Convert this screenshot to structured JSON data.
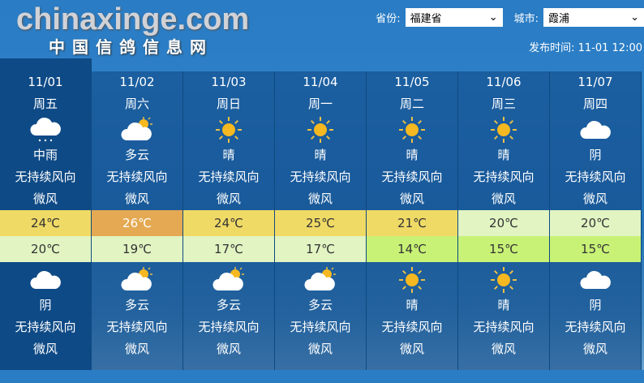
{
  "header": {
    "province_label": "省份:",
    "province_value": "福建省",
    "city_label": "城市:",
    "city_value": "霞浦",
    "publish_label": "发布时间:",
    "publish_time": "11-01 12:00"
  },
  "colors": {
    "high_warm": "#f0da66",
    "high_hot": "#e4a952",
    "mild": "#e1f4c2",
    "cool": "#c8f276"
  },
  "days": [
    {
      "date": "11/01",
      "weekday": "周五",
      "day_icon": "rain-cloud",
      "day_cond": "中雨",
      "day_wind_dir": "无持续风向",
      "day_wind": "微风",
      "high": "24℃",
      "high_color": "#f0da66",
      "high_text": "#333",
      "low": "20℃",
      "low_color": "#e1f4c2",
      "night_icon": "cloud",
      "night_cond": "阴",
      "night_wind_dir": "无持续风向",
      "night_wind": "微风"
    },
    {
      "date": "11/02",
      "weekday": "周六",
      "day_icon": "partly-cloudy",
      "day_cond": "多云",
      "day_wind_dir": "无持续风向",
      "day_wind": "微风",
      "high": "26℃",
      "high_color": "#e4a952",
      "high_text": "#fff",
      "low": "19℃",
      "low_color": "#e1f4c2",
      "night_icon": "partly-cloudy",
      "night_cond": "多云",
      "night_wind_dir": "无持续风向",
      "night_wind": "微风"
    },
    {
      "date": "11/03",
      "weekday": "周日",
      "day_icon": "sun",
      "day_cond": "晴",
      "day_wind_dir": "无持续风向",
      "day_wind": "微风",
      "high": "24℃",
      "high_color": "#f0da66",
      "high_text": "#333",
      "low": "17℃",
      "low_color": "#e1f4c2",
      "night_icon": "partly-cloudy",
      "night_cond": "多云",
      "night_wind_dir": "无持续风向",
      "night_wind": "微风"
    },
    {
      "date": "11/04",
      "weekday": "周一",
      "day_icon": "sun",
      "day_cond": "晴",
      "day_wind_dir": "无持续风向",
      "day_wind": "微风",
      "high": "25℃",
      "high_color": "#f0da66",
      "high_text": "#333",
      "low": "17℃",
      "low_color": "#e1f4c2",
      "night_icon": "partly-cloudy",
      "night_cond": "多云",
      "night_wind_dir": "无持续风向",
      "night_wind": "微风"
    },
    {
      "date": "11/05",
      "weekday": "周二",
      "day_icon": "sun",
      "day_cond": "晴",
      "day_wind_dir": "无持续风向",
      "day_wind": "微风",
      "high": "21℃",
      "high_color": "#f0da66",
      "high_text": "#333",
      "low": "14℃",
      "low_color": "#c8f276",
      "night_icon": "sun",
      "night_cond": "晴",
      "night_wind_dir": "无持续风向",
      "night_wind": "微风"
    },
    {
      "date": "11/06",
      "weekday": "周三",
      "day_icon": "sun",
      "day_cond": "晴",
      "day_wind_dir": "无持续风向",
      "day_wind": "微风",
      "high": "20℃",
      "high_color": "#e1f4c2",
      "high_text": "#333",
      "low": "15℃",
      "low_color": "#c8f276",
      "night_icon": "sun",
      "night_cond": "晴",
      "night_wind_dir": "无持续风向",
      "night_wind": "微风"
    },
    {
      "date": "11/07",
      "weekday": "周四",
      "day_icon": "cloud",
      "day_cond": "阴",
      "day_wind_dir": "无持续风向",
      "day_wind": "微风",
      "high": "20℃",
      "high_color": "#e1f4c2",
      "high_text": "#333",
      "low": "15℃",
      "low_color": "#c8f276",
      "night_icon": "cloud",
      "night_cond": "阴",
      "night_wind_dir": "无持续风向",
      "night_wind": "微风"
    }
  ],
  "watermark": {
    "text": "chinaxinge.com",
    "subtitle": "中国信鸽信息网"
  }
}
